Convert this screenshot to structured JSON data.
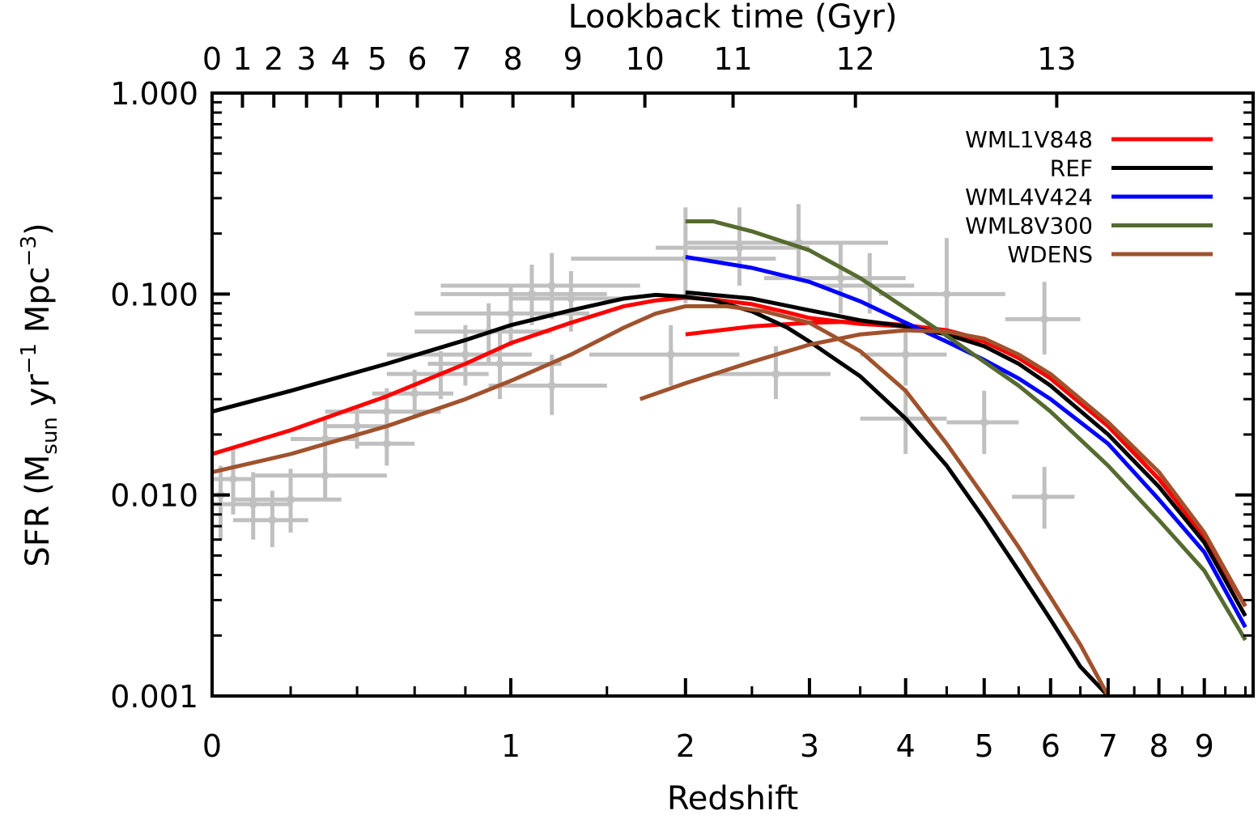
{
  "chart_data": {
    "type": "line",
    "title": "",
    "xlabel": "Redshift",
    "ylabel": "SFR (M",
    "ylabel_sub": "sun",
    "ylabel_mid": " yr",
    "ylabel_sup1": "−1",
    "ylabel_mid2": " Mpc",
    "ylabel_sup2": "−3",
    "ylabel_end": ")",
    "top_xlabel": "Lookback time (Gyr)",
    "x_scale": "log(1+z)",
    "y_scale": "log",
    "xlim": [
      0,
      10.2
    ],
    "ylim": [
      0.001,
      1.0
    ],
    "grid": false,
    "legend_position": "top-right",
    "x_ticks": [
      {
        "value": 0,
        "label": "0"
      },
      {
        "value": 1,
        "label": "1"
      },
      {
        "value": 2,
        "label": "2"
      },
      {
        "value": 3,
        "label": "3"
      },
      {
        "value": 4,
        "label": "4"
      },
      {
        "value": 5,
        "label": "5"
      },
      {
        "value": 6,
        "label": "6"
      },
      {
        "value": 7,
        "label": "7"
      },
      {
        "value": 8,
        "label": "8"
      },
      {
        "value": 9,
        "label": "9"
      }
    ],
    "y_ticks": [
      {
        "value": 0.001,
        "label": "0.001"
      },
      {
        "value": 0.01,
        "label": "0.010"
      },
      {
        "value": 0.1,
        "label": "0.100"
      },
      {
        "value": 1.0,
        "label": "1.000"
      }
    ],
    "top_ticks": [
      {
        "z": 0.0,
        "label": "0"
      },
      {
        "z": 0.073,
        "label": "1"
      },
      {
        "z": 0.154,
        "label": "2"
      },
      {
        "z": 0.245,
        "label": "3"
      },
      {
        "z": 0.347,
        "label": "4"
      },
      {
        "z": 0.467,
        "label": "5"
      },
      {
        "z": 0.61,
        "label": "6"
      },
      {
        "z": 0.785,
        "label": "7"
      },
      {
        "z": 1.01,
        "label": "8"
      },
      {
        "z": 1.31,
        "label": "9"
      },
      {
        "z": 1.73,
        "label": "10"
      },
      {
        "z": 2.35,
        "label": "11"
      },
      {
        "z": 3.45,
        "label": "12"
      },
      {
        "z": 6.1,
        "label": "13"
      }
    ],
    "series": [
      {
        "name": "WML1V848",
        "color": "#ff0000",
        "x": [
          0,
          0.2,
          0.5,
          0.8,
          1.0,
          1.3,
          1.6,
          1.8,
          2.0,
          2.2,
          2.5,
          2.8,
          3.0,
          3.5,
          4.0,
          4.5,
          5.0,
          5.5,
          6.0,
          7.0,
          8.0,
          9.0,
          10.0
        ],
        "y": [
          0.016,
          0.021,
          0.031,
          0.045,
          0.057,
          0.072,
          0.087,
          0.093,
          0.096,
          0.094,
          0.089,
          0.081,
          0.076,
          0.071,
          0.069,
          0.065,
          0.058,
          0.048,
          0.038,
          0.022,
          0.012,
          0.0062,
          0.0028
        ]
      },
      {
        "name": "WML1V848",
        "color": "#ff0000",
        "x": [
          2.0,
          2.5,
          3.0,
          3.5,
          4.0,
          4.5,
          5.0,
          5.5,
          6.0,
          7.0,
          8.0,
          9.0,
          10.0
        ],
        "y": [
          0.063,
          0.069,
          0.072,
          0.073,
          0.07,
          0.066,
          0.059,
          0.049,
          0.038,
          0.022,
          0.012,
          0.0062,
          0.0028
        ]
      },
      {
        "name": "REF",
        "color": "#000000",
        "x": [
          0,
          0.2,
          0.5,
          0.8,
          1.0,
          1.3,
          1.6,
          1.8,
          2.0,
          2.2,
          2.5,
          2.8,
          3.0,
          3.5,
          4.0,
          4.5,
          5.0,
          5.5,
          6.0,
          6.5,
          7.0
        ],
        "y": [
          0.026,
          0.033,
          0.045,
          0.059,
          0.07,
          0.083,
          0.095,
          0.099,
          0.097,
          0.093,
          0.082,
          0.068,
          0.058,
          0.039,
          0.024,
          0.014,
          0.0076,
          0.0042,
          0.0024,
          0.0014,
          0.001
        ]
      },
      {
        "name": "REF",
        "color": "#000000",
        "x": [
          2.0,
          2.5,
          3.0,
          3.5,
          4.0,
          4.5,
          5.0,
          5.5,
          6.0,
          7.0,
          8.0,
          9.0,
          10.0
        ],
        "y": [
          0.102,
          0.095,
          0.083,
          0.074,
          0.069,
          0.063,
          0.055,
          0.045,
          0.035,
          0.02,
          0.011,
          0.0058,
          0.0025
        ]
      },
      {
        "name": "WML4V424",
        "color": "#0000ff",
        "x": [
          2.0,
          2.5,
          3.0,
          3.5,
          4.0,
          4.5,
          5.0,
          5.5,
          6.0,
          7.0,
          8.0,
          9.0,
          10.0
        ],
        "y": [
          0.153,
          0.135,
          0.115,
          0.092,
          0.072,
          0.058,
          0.047,
          0.038,
          0.03,
          0.018,
          0.0095,
          0.0052,
          0.0022
        ]
      },
      {
        "name": "WML8V300",
        "color": "#556b2f",
        "x": [
          2.0,
          2.2,
          2.5,
          3.0,
          3.5,
          4.0,
          4.5,
          5.0,
          5.5,
          6.0,
          7.0,
          8.0,
          9.0,
          10.0
        ],
        "y": [
          0.23,
          0.23,
          0.205,
          0.165,
          0.12,
          0.085,
          0.062,
          0.046,
          0.035,
          0.026,
          0.014,
          0.0075,
          0.0042,
          0.0019
        ]
      },
      {
        "name": "WDENS",
        "color": "#a0522d",
        "x": [
          0,
          0.2,
          0.5,
          0.8,
          1.0,
          1.3,
          1.6,
          1.8,
          2.0,
          2.3,
          2.6,
          3.0,
          3.5,
          4.0,
          4.5,
          5.0,
          5.5,
          6.0,
          6.5,
          7.0
        ],
        "y": [
          0.013,
          0.016,
          0.022,
          0.03,
          0.037,
          0.05,
          0.068,
          0.08,
          0.087,
          0.087,
          0.082,
          0.072,
          0.052,
          0.033,
          0.018,
          0.0098,
          0.0055,
          0.0031,
          0.0018,
          0.001
        ]
      },
      {
        "name": "WDENS",
        "color": "#a0522d",
        "x": [
          1.7,
          2.0,
          2.5,
          3.0,
          3.5,
          4.0,
          4.5,
          5.0,
          5.5,
          6.0,
          7.0,
          8.0,
          9.0,
          10.0
        ],
        "y": [
          0.03,
          0.036,
          0.046,
          0.056,
          0.063,
          0.066,
          0.065,
          0.06,
          0.05,
          0.04,
          0.023,
          0.013,
          0.0065,
          0.0028
        ]
      }
    ],
    "legend": [
      {
        "label": "WML1V848",
        "color": "#ff0000"
      },
      {
        "label": "REF",
        "color": "#000000"
      },
      {
        "label": "WML4V424",
        "color": "#0000ff"
      },
      {
        "label": "WML8V300",
        "color": "#556b2f"
      },
      {
        "label": "WDENS",
        "color": "#a0522d"
      }
    ],
    "observations": {
      "color": "#c0c0c0",
      "points": [
        {
          "x": 0.02,
          "y": 0.01,
          "xerr": 0.02,
          "yerr_lo": 0.004,
          "yerr_hi": 0.004
        },
        {
          "x": 0.05,
          "y": 0.012,
          "xerr": 0.05,
          "yerr_lo": 0.004,
          "yerr_hi": 0.005
        },
        {
          "x": 0.1,
          "y": 0.009,
          "xerr": 0.1,
          "yerr_lo": 0.003,
          "yerr_hi": 0.004
        },
        {
          "x": 0.15,
          "y": 0.0075,
          "xerr": 0.1,
          "yerr_lo": 0.002,
          "yerr_hi": 0.003
        },
        {
          "x": 0.2,
          "y": 0.0095,
          "xerr": 0.15,
          "yerr_lo": 0.003,
          "yerr_hi": 0.004
        },
        {
          "x": 0.3,
          "y": 0.0125,
          "xerr": 0.2,
          "yerr_lo": 0.003,
          "yerr_hi": 0.004
        },
        {
          "x": 0.3,
          "y": 0.019,
          "xerr": 0.1,
          "yerr_lo": 0.004,
          "yerr_hi": 0.005
        },
        {
          "x": 0.4,
          "y": 0.022,
          "xerr": 0.1,
          "yerr_lo": 0.005,
          "yerr_hi": 0.006
        },
        {
          "x": 0.5,
          "y": 0.026,
          "xerr": 0.2,
          "yerr_lo": 0.007,
          "yerr_hi": 0.008
        },
        {
          "x": 0.5,
          "y": 0.018,
          "xerr": 0.1,
          "yerr_lo": 0.004,
          "yerr_hi": 0.005
        },
        {
          "x": 0.6,
          "y": 0.032,
          "xerr": 0.15,
          "yerr_lo": 0.008,
          "yerr_hi": 0.01
        },
        {
          "x": 0.7,
          "y": 0.04,
          "xerr": 0.2,
          "yerr_lo": 0.01,
          "yerr_hi": 0.012
        },
        {
          "x": 0.8,
          "y": 0.05,
          "xerr": 0.3,
          "yerr_lo": 0.015,
          "yerr_hi": 0.02
        },
        {
          "x": 0.9,
          "y": 0.065,
          "xerr": 0.3,
          "yerr_lo": 0.02,
          "yerr_hi": 0.025
        },
        {
          "x": 1.0,
          "y": 0.08,
          "xerr": 0.4,
          "yerr_lo": 0.025,
          "yerr_hi": 0.03
        },
        {
          "x": 1.1,
          "y": 0.1,
          "xerr": 0.4,
          "yerr_lo": 0.03,
          "yerr_hi": 0.04
        },
        {
          "x": 1.2,
          "y": 0.11,
          "xerr": 0.5,
          "yerr_lo": 0.035,
          "yerr_hi": 0.05
        },
        {
          "x": 1.3,
          "y": 0.095,
          "xerr": 0.3,
          "yerr_lo": 0.03,
          "yerr_hi": 0.035
        },
        {
          "x": 0.95,
          "y": 0.045,
          "xerr": 0.3,
          "yerr_lo": 0.015,
          "yerr_hi": 0.02
        },
        {
          "x": 1.2,
          "y": 0.035,
          "xerr": 0.3,
          "yerr_lo": 0.01,
          "yerr_hi": 0.015
        },
        {
          "x": 1.9,
          "y": 0.05,
          "xerr": 0.5,
          "yerr_lo": 0.015,
          "yerr_hi": 0.02
        },
        {
          "x": 2.0,
          "y": 0.15,
          "xerr": 0.7,
          "yerr_lo": 0.06,
          "yerr_hi": 0.12
        },
        {
          "x": 2.4,
          "y": 0.17,
          "xerr": 0.6,
          "yerr_lo": 0.06,
          "yerr_hi": 0.1
        },
        {
          "x": 2.7,
          "y": 0.04,
          "xerr": 0.5,
          "yerr_lo": 0.01,
          "yerr_hi": 0.015
        },
        {
          "x": 2.9,
          "y": 0.18,
          "xerr": 0.9,
          "yerr_lo": 0.06,
          "yerr_hi": 0.1
        },
        {
          "x": 3.3,
          "y": 0.12,
          "xerr": 0.7,
          "yerr_lo": 0.04,
          "yerr_hi": 0.06
        },
        {
          "x": 3.6,
          "y": 0.11,
          "xerr": 0.5,
          "yerr_lo": 0.03,
          "yerr_hi": 0.05
        },
        {
          "x": 4.0,
          "y": 0.05,
          "xerr": 0.5,
          "yerr_lo": 0.015,
          "yerr_hi": 0.02
        },
        {
          "x": 4.0,
          "y": 0.024,
          "xerr": 0.5,
          "yerr_lo": 0.008,
          "yerr_hi": 0.01
        },
        {
          "x": 4.5,
          "y": 0.1,
          "xerr": 0.8,
          "yerr_lo": 0.04,
          "yerr_hi": 0.09
        },
        {
          "x": 5.0,
          "y": 0.023,
          "xerr": 0.5,
          "yerr_lo": 0.007,
          "yerr_hi": 0.01
        },
        {
          "x": 5.9,
          "y": 0.075,
          "xerr": 0.6,
          "yerr_lo": 0.025,
          "yerr_hi": 0.04
        },
        {
          "x": 5.9,
          "y": 0.0098,
          "xerr": 0.5,
          "yerr_lo": 0.003,
          "yerr_hi": 0.004
        }
      ]
    }
  }
}
